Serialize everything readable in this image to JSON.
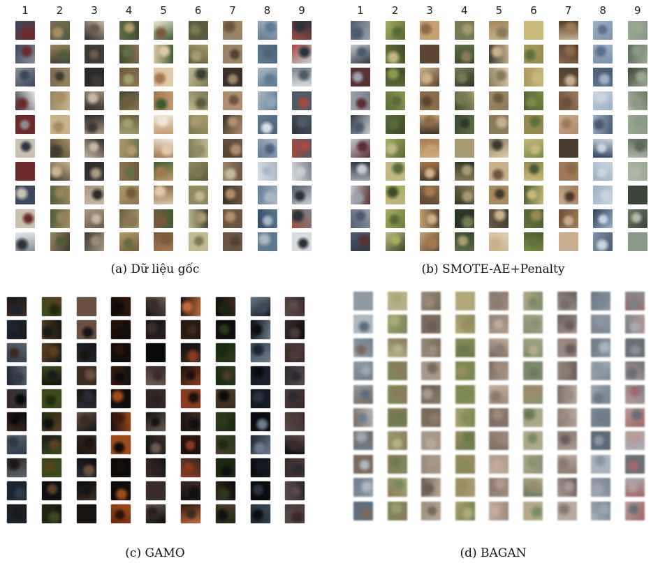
{
  "column_numbers": [
    "1",
    "2",
    "3",
    "4",
    "5",
    "6",
    "7",
    "8",
    "9"
  ],
  "rows_per_panel": 10,
  "panels": [
    {
      "id": "a",
      "caption": "(a) Dữ liệu gốc",
      "show_column_numbers": true,
      "style": "natural",
      "palettes": [
        [
          "#8a8f95",
          "#3b4660",
          "#c9c2b1",
          "#6d2a2a",
          "#e8e8ea",
          "#2e3540"
        ],
        [
          "#a58d60",
          "#4e5b3a",
          "#7c6b52",
          "#c9b38c",
          "#3f3a2e",
          "#94855e"
        ],
        [
          "#9b8a72",
          "#3d3a36",
          "#c8b6a0",
          "#6b5a48",
          "#2c2a2a",
          "#a89882"
        ],
        [
          "#5f6e45",
          "#8c7351",
          "#3d4a2c",
          "#b59a6b",
          "#6f5c3c",
          "#a0a070"
        ],
        [
          "#c49a6c",
          "#7a5a3c",
          "#e0c9a8",
          "#3b5d2e",
          "#f0e6d8",
          "#a2774e"
        ],
        [
          "#7a7a52",
          "#a89a6e",
          "#5a5a3e",
          "#c0b890",
          "#3e4030",
          "#8f8a5f"
        ],
        [
          "#6a5540",
          "#9c8466",
          "#3a3026",
          "#c7b89c",
          "#524232",
          "#b08d6c"
        ],
        [
          "#5e7a93",
          "#aab8c6",
          "#2e4a64",
          "#d6dee6",
          "#4a6378",
          "#8ea3b6"
        ],
        [
          "#4e5a66",
          "#a64a3a",
          "#2a323c",
          "#c9ced4",
          "#7a848c",
          "#d8dcde"
        ]
      ]
    },
    {
      "id": "b",
      "caption": "(b) SMOTE-AE+Penalty",
      "show_column_numbers": true,
      "style": "natural",
      "palettes": [
        [
          "#9aa3ab",
          "#4c5a70",
          "#c7ccd2",
          "#5a2e33",
          "#7a8290",
          "#2f3642"
        ],
        [
          "#6e7a3e",
          "#a6ae5a",
          "#3e4a2a",
          "#c2b882",
          "#5a6a38",
          "#8a9a4c"
        ],
        [
          "#a8784a",
          "#5a4632",
          "#c8a070",
          "#3c3428",
          "#8c6a4a",
          "#d0b088"
        ],
        [
          "#5d6d46",
          "#8d7a5a",
          "#3a4a30",
          "#a89a70",
          "#2c3624",
          "#767a52"
        ],
        [
          "#a8885e",
          "#6a5a44",
          "#c8b08a",
          "#3e3a30",
          "#8a7a5c",
          "#e0d0b0"
        ],
        [
          "#7a8a46",
          "#a89a5a",
          "#4a5a32",
          "#c8b87a",
          "#60703c",
          "#968a50"
        ],
        [
          "#8a6a4a",
          "#b08a66",
          "#4a3a2c",
          "#c8ae8e",
          "#6a5038",
          "#a07a56"
        ],
        [
          "#5a7090",
          "#9ab0c8",
          "#2e4460",
          "#c8d4e0",
          "#4a5c74",
          "#7e94ac"
        ],
        [
          "#5a6a5a",
          "#8a9a88",
          "#3a4438",
          "#b0b8a8",
          "#6a7a60",
          "#9aa890"
        ]
      ]
    },
    {
      "id": "c",
      "caption": "(c) GAMO",
      "show_column_numbers": false,
      "style": "dark",
      "palettes": [
        [
          "#1a1a1a",
          "#2e3a4a",
          "#0a0a0a",
          "#3c2a22",
          "#1c2430",
          "#5a6470"
        ],
        [
          "#141410",
          "#3a4a1a",
          "#1a1a1a",
          "#5a4020",
          "#222a10",
          "#101010"
        ],
        [
          "#1a1410",
          "#3c2c22",
          "#0c0c0c",
          "#6a5040",
          "#2a2a36",
          "#141418"
        ],
        [
          "#2a1208",
          "#6a2a10",
          "#141010",
          "#a04a1a",
          "#3a1a0c",
          "#0e0a08"
        ],
        [
          "#141414",
          "#3a2a2a",
          "#0a0a0a",
          "#6a5a50",
          "#2c2020",
          "#1a1a1a"
        ],
        [
          "#2a1a10",
          "#8a3a1a",
          "#101010",
          "#c06a3a",
          "#3a2a20",
          "#1a1010"
        ],
        [
          "#101010",
          "#2a3a1a",
          "#0a0a0a",
          "#4a3a2a",
          "#1a2a10",
          "#3c2c1c"
        ],
        [
          "#141a22",
          "#3a4a5a",
          "#0a0c10",
          "#6a7a8a",
          "#1c2430",
          "#2a3440"
        ],
        [
          "#1a1a1e",
          "#3a2a2a",
          "#0c0c10",
          "#5a4a4a",
          "#2a2a30",
          "#4a3a3a"
        ]
      ]
    },
    {
      "id": "d",
      "caption": "(d) BAGAN",
      "show_column_numbers": false,
      "style": "blurry",
      "palettes": [
        [
          "#8e9aa4",
          "#6c7c8c",
          "#b0b8be",
          "#7a6a5e",
          "#9aa6ae",
          "#5e6e7e"
        ],
        [
          "#9a9a6a",
          "#7a8a5a",
          "#b4b088",
          "#8a7a5a",
          "#a8a878",
          "#6e7a50"
        ],
        [
          "#9a8a7a",
          "#7a6a5a",
          "#b8a896",
          "#6a5e52",
          "#a8988a",
          "#8a7a6c"
        ],
        [
          "#8a8a5a",
          "#6a7a4a",
          "#a8a070",
          "#9a8a60",
          "#7a8a50",
          "#b0a878"
        ],
        [
          "#a08a7a",
          "#8a7a70",
          "#c0ac9a",
          "#7a6a60",
          "#b09a88",
          "#94847a"
        ],
        [
          "#8a9070",
          "#6a7a5a",
          "#a8a888",
          "#9a8a6a",
          "#7a8a68",
          "#b4aa88"
        ],
        [
          "#9a8880",
          "#7a6e68",
          "#b8aaa0",
          "#8a7a70",
          "#a89890",
          "#6a5e5a"
        ],
        [
          "#8a96a2",
          "#6a7a88",
          "#aab4bc",
          "#7a8692",
          "#9aa4ae",
          "#5a6a78"
        ],
        [
          "#8a8e94",
          "#a0686a",
          "#a8acb2",
          "#6a7076",
          "#b89a98",
          "#7a8086"
        ]
      ]
    }
  ]
}
